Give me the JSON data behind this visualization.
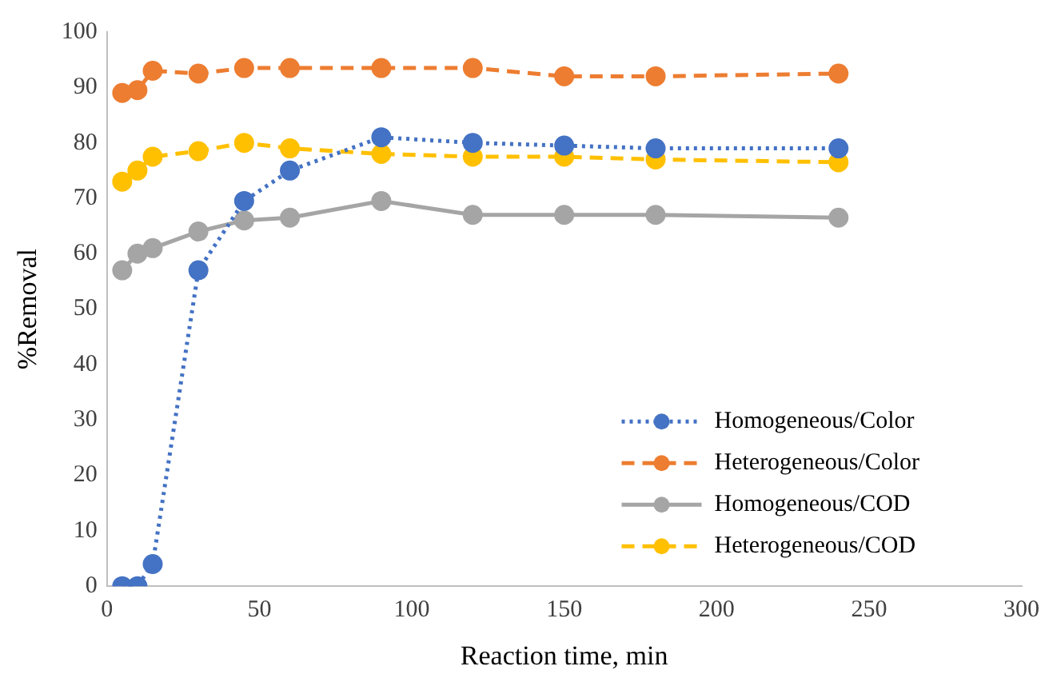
{
  "chart_data": {
    "type": "line",
    "xlabel": "Reaction time, min",
    "ylabel": "%Removal",
    "x": [
      5,
      10,
      15,
      30,
      45,
      60,
      90,
      120,
      150,
      180,
      240
    ],
    "series": [
      {
        "name": "Homogeneous/Color",
        "color": "#4472c4",
        "line_style": "dotted",
        "values": [
          0,
          0,
          4,
          57,
          69.5,
          75,
          81,
          80,
          79.5,
          79,
          79
        ]
      },
      {
        "name": "Heterogeneous/Color",
        "color": "#ed7d31",
        "line_style": "dashed",
        "values": [
          89,
          89.5,
          93,
          92.5,
          93.5,
          93.5,
          93.5,
          93.5,
          92,
          92,
          92.5
        ]
      },
      {
        "name": "Homogeneous/COD",
        "color": "#a5a5a5",
        "line_style": "solid",
        "values": [
          57,
          60,
          61,
          64,
          66,
          66.5,
          69.5,
          67,
          67,
          67,
          66.5
        ]
      },
      {
        "name": "Heterogeneous/COD",
        "color": "#ffc000",
        "line_style": "dashed",
        "values": [
          73,
          75,
          77.5,
          78.5,
          80,
          79,
          78,
          77.5,
          77.5,
          77,
          76.5
        ]
      }
    ],
    "xlim": [
      0,
      300
    ],
    "xticks": [
      0,
      50,
      100,
      150,
      200,
      250,
      300
    ],
    "ylim": [
      0,
      100
    ],
    "yticks": [
      0,
      10,
      20,
      30,
      40,
      50,
      60,
      70,
      80,
      90,
      100
    ],
    "grid": false,
    "legend": "bottom right",
    "marker": "circle"
  }
}
